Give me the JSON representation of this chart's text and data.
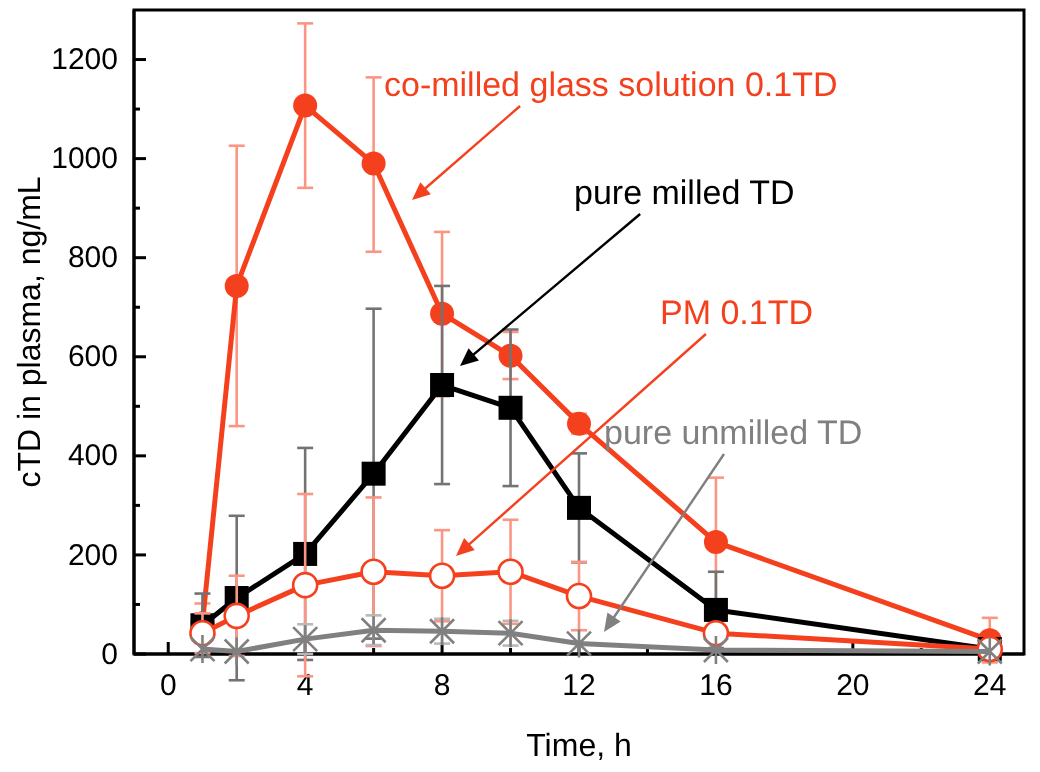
{
  "chart_data": {
    "type": "line",
    "xlabel": "Time, h",
    "ylabel": "cTD in plasma, ng/mL",
    "xlim": [
      -1,
      25
    ],
    "ylim": [
      0,
      1300
    ],
    "xticks": [
      0,
      {
        "value": 2,
        "label": null
      },
      4,
      {
        "value": 6,
        "label": null
      },
      8,
      {
        "value": 10,
        "label": null
      },
      12,
      {
        "value": 14,
        "label": null
      },
      16,
      {
        "value": 18,
        "label": null
      },
      20,
      {
        "value": 22,
        "label": null
      },
      24
    ],
    "yticks": [
      0,
      {
        "value": 100,
        "label": null
      },
      200,
      {
        "value": 300,
        "label": null
      },
      400,
      {
        "value": 500,
        "label": null
      },
      600,
      {
        "value": 700,
        "label": null
      },
      800,
      {
        "value": 900,
        "label": null
      },
      1000,
      {
        "value": 1100,
        "label": null
      },
      1200
    ],
    "x": [
      1,
      2,
      4,
      6,
      8,
      10,
      12,
      16,
      24
    ],
    "grid": false,
    "series": [
      {
        "color": "#f5401e",
        "marker": "circle",
        "values": [
          62,
          743,
          1107,
          990,
          687,
          602,
          465,
          226,
          28
        ],
        "errors": [
          40,
          [
            460,
            1026
          ],
          [
            941,
            1273
          ],
          [
            812,
            1164
          ],
          [
            520,
            852
          ],
          [
            555,
            650
          ],
          20,
          130,
          45
        ]
      },
      {
        "color": "#000000",
        "marker": "square",
        "values": [
          58,
          113,
          202,
          364,
          543,
          497,
          295,
          89,
          10
        ],
        "errors": [
          64,
          166,
          214,
          333,
          200,
          [
            339,
            655
          ],
          110,
          77,
          null
        ]
      },
      {
        "color": "#f5401e",
        "marker": "circle-open",
        "values": [
          42,
          77,
          139,
          166,
          158,
          166,
          117,
          42,
          10
        ],
        "errors": [
          40,
          81,
          184,
          150,
          92,
          105,
          69,
          null,
          null
        ]
      },
      {
        "color": "#808080",
        "marker": "cross",
        "values": [
          10,
          5,
          30,
          48,
          46,
          42,
          21,
          8,
          5
        ],
        "errors": [
          null,
          null,
          30,
          30,
          25,
          25,
          null,
          null,
          null
        ]
      }
    ],
    "annotations": [
      "co-milled glass solution 0.1TD",
      "pure milled TD",
      "PM 0.1TD",
      "pure unmilled TD"
    ]
  }
}
